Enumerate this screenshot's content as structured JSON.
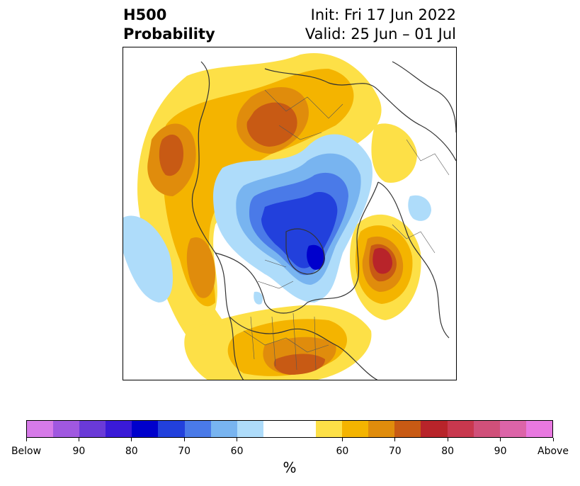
{
  "header": {
    "title_line1": "H500",
    "title_line2": "Probability",
    "init_text": "Init: Fri 17 Jun 2022",
    "valid_text": "Valid: 25 Jun – 01 Jul"
  },
  "colorbar": {
    "unit_label": "%",
    "tick_labels": [
      "Below",
      "90",
      "80",
      "70",
      "60",
      "60",
      "70",
      "80",
      "90",
      "Above"
    ],
    "colors": [
      "#d67ae8",
      "#a058e0",
      "#6a3ad8",
      "#3a1ad8",
      "#0000cc",
      "#2240dc",
      "#4a7ae8",
      "#78b4f0",
      "#aedcfa",
      "#ffffff",
      "#ffffff",
      "#fde047",
      "#f4b400",
      "#e08c0c",
      "#c85a14",
      "#b8242a",
      "#c8384e",
      "#d0507a",
      "#dc64a8",
      "#e878e0"
    ]
  },
  "map": {
    "projection": "north-polar-stereographic",
    "colors": {
      "coast": "#333333",
      "yellow": "#fde047",
      "gold": "#f4b400",
      "orange": "#e08c0c",
      "darkorange": "#c85a14",
      "red": "#b8242a",
      "lightblue": "#aedcfa",
      "skyblue": "#78b4f0",
      "blue": "#4a7ae8",
      "royal": "#2240dc",
      "deepblue": "#0000cc"
    }
  }
}
